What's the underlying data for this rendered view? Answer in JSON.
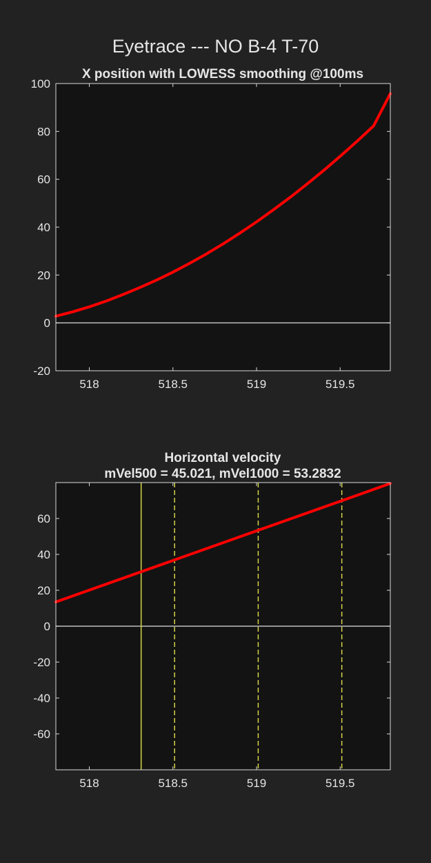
{
  "figure_title": "Eyetrace --- NO B-4 T-70",
  "colors": {
    "background": "#222222",
    "axes_background": "#131313",
    "axes_edge": "#d9d9d9",
    "text": "#e6e6e6",
    "zero_line": "#bfbfbf",
    "trace": "#ff0000",
    "marker": "#d4d44a"
  },
  "chart_data": [
    {
      "type": "line",
      "title": "X position with LOWESS smoothing @100ms",
      "xlabel": "",
      "ylabel": "",
      "xlim": [
        517.8,
        519.8
      ],
      "ylim": [
        -20,
        100
      ],
      "xticks": [
        518,
        518.5,
        519,
        519.5
      ],
      "xtick_labels": [
        "518",
        "518.5",
        "519",
        "519.5"
      ],
      "yticks": [
        -20,
        0,
        20,
        40,
        60,
        80,
        100
      ],
      "ytick_labels": [
        "-20",
        "0",
        "20",
        "40",
        "60",
        "80",
        "100"
      ],
      "grid": false,
      "zero_line": true,
      "series": [
        {
          "color": "#ff0000",
          "x": [
            517.8,
            517.9,
            518.0,
            518.1,
            518.2,
            518.3,
            518.4,
            518.5,
            518.6,
            518.7,
            518.8,
            518.9,
            519.0,
            519.1,
            519.2,
            519.3,
            519.4,
            519.5,
            519.6,
            519.7,
            519.8
          ],
          "y": [
            2.8,
            4.6,
            6.7,
            9.1,
            11.8,
            14.7,
            17.8,
            21.2,
            24.9,
            28.8,
            33.0,
            37.5,
            42.2,
            47.2,
            52.4,
            57.9,
            63.6,
            69.6,
            75.8,
            82.3,
            95.8
          ]
        }
      ]
    },
    {
      "type": "line",
      "title": "Horizontal velocity",
      "subtitle": "mVel500 = 45.021, mVel1000 = 53.2832",
      "xlabel": "",
      "ylabel": "",
      "xlim": [
        517.8,
        519.8
      ],
      "ylim": [
        -80,
        80
      ],
      "xticks": [
        518,
        518.5,
        519,
        519.5
      ],
      "xtick_labels": [
        "518",
        "518.5",
        "519",
        "519.5"
      ],
      "yticks": [
        -60,
        -40,
        -20,
        0,
        20,
        40,
        60
      ],
      "ytick_labels": [
        "-60",
        "-40",
        "-20",
        "0",
        "20",
        "40",
        "60"
      ],
      "grid": false,
      "zero_line": true,
      "series": [
        {
          "color": "#ff0000",
          "x": [
            517.8,
            519.8
          ],
          "y": [
            13.5,
            79.5
          ]
        }
      ],
      "vlines": [
        {
          "x": 518.31,
          "style": "solid",
          "color": "#d4d44a"
        },
        {
          "x": 518.51,
          "style": "dashed",
          "color": "#d4d44a"
        },
        {
          "x": 519.01,
          "style": "dashed",
          "color": "#d4d44a"
        },
        {
          "x": 519.51,
          "style": "dashed",
          "color": "#d4d44a"
        }
      ]
    }
  ]
}
